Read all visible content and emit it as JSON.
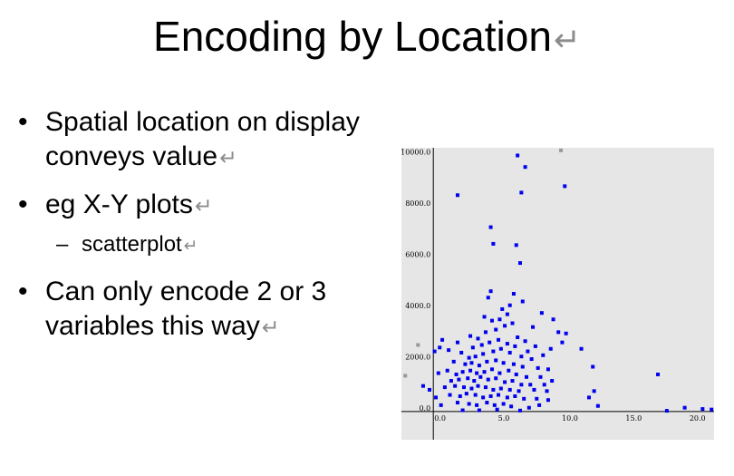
{
  "slide": {
    "title": "Encoding by Location",
    "bullets": [
      {
        "text": "Spatial location on display conveys value"
      },
      {
        "text": "eg X-Y plots",
        "sub": [
          "scatterplot"
        ]
      },
      {
        "text": "Can only encode 2 or 3 variables this way"
      }
    ],
    "return_glyph": "↵",
    "sub_bullet_marker": "–"
  },
  "chart_data": {
    "type": "scatter",
    "xlim": [
      -2.5,
      22
    ],
    "ylim": [
      -1100,
      10300
    ],
    "x_ticks": [
      "0.0",
      "5.0",
      "10.0",
      "15.0",
      "20.0"
    ],
    "y_ticks": [
      "0.0",
      "2000.0",
      "4000.0",
      "6000.0",
      "8000.0",
      "10000.0"
    ],
    "grid": false,
    "colors": {
      "primary": "#0000ee",
      "secondary": "#999999",
      "background": "#e6e6e6"
    },
    "series": [
      {
        "color": "#0000ee",
        "points": [
          [
            6.6,
            10000
          ],
          [
            7.2,
            9550
          ],
          [
            10.3,
            8800
          ],
          [
            6.9,
            8550
          ],
          [
            1.9,
            8450
          ],
          [
            4.5,
            7200
          ],
          [
            4.7,
            6550
          ],
          [
            6.5,
            6500
          ],
          [
            6.8,
            5800
          ],
          [
            4.5,
            4700
          ],
          [
            6.3,
            4600
          ],
          [
            4.3,
            4450
          ],
          [
            5.4,
            4000
          ],
          [
            6.0,
            4150
          ],
          [
            7.0,
            4300
          ],
          [
            5.8,
            3800
          ],
          [
            8.5,
            3850
          ],
          [
            9.4,
            3600
          ],
          [
            4.0,
            3700
          ],
          [
            4.6,
            3550
          ],
          [
            5.2,
            3600
          ],
          [
            6.2,
            3450
          ],
          [
            7.8,
            3300
          ],
          [
            9.8,
            3100
          ],
          [
            10.4,
            3050
          ],
          [
            10.1,
            2700
          ],
          [
            0.7,
            2800
          ],
          [
            1.9,
            2700
          ],
          [
            2.9,
            2950
          ],
          [
            3.5,
            2850
          ],
          [
            4.1,
            3100
          ],
          [
            4.9,
            3200
          ],
          [
            5.6,
            3350
          ],
          [
            6.6,
            2900
          ],
          [
            7.2,
            2750
          ],
          [
            8.0,
            2550
          ],
          [
            9.2,
            2450
          ],
          [
            11.6,
            2450
          ],
          [
            0.1,
            2350
          ],
          [
            0.5,
            2500
          ],
          [
            1.2,
            2400
          ],
          [
            2.2,
            2300
          ],
          [
            3.1,
            2500
          ],
          [
            3.8,
            2600
          ],
          [
            4.4,
            2700
          ],
          [
            5.1,
            2800
          ],
          [
            5.8,
            2650
          ],
          [
            6.4,
            2550
          ],
          [
            7.4,
            2350
          ],
          [
            8.6,
            2200
          ],
          [
            2.8,
            2100
          ],
          [
            3.3,
            2150
          ],
          [
            3.9,
            2250
          ],
          [
            4.7,
            2350
          ],
          [
            5.3,
            2450
          ],
          [
            6.0,
            2300
          ],
          [
            6.9,
            2150
          ],
          [
            7.7,
            2050
          ],
          [
            1.6,
            1950
          ],
          [
            2.5,
            1850
          ],
          [
            3.0,
            1900
          ],
          [
            3.6,
            1800
          ],
          [
            4.2,
            1950
          ],
          [
            4.9,
            2000
          ],
          [
            5.5,
            1900
          ],
          [
            6.3,
            1850
          ],
          [
            7.0,
            1750
          ],
          [
            8.2,
            1700
          ],
          [
            9.0,
            1650
          ],
          [
            12.5,
            1750
          ],
          [
            0.4,
            1500
          ],
          [
            1.1,
            1600
          ],
          [
            1.8,
            1450
          ],
          [
            2.3,
            1550
          ],
          [
            2.9,
            1600
          ],
          [
            3.4,
            1500
          ],
          [
            4.0,
            1550
          ],
          [
            4.6,
            1650
          ],
          [
            5.2,
            1500
          ],
          [
            5.9,
            1600
          ],
          [
            6.5,
            1450
          ],
          [
            7.3,
            1350
          ],
          [
            8.4,
            1350
          ],
          [
            17.6,
            1450
          ],
          [
            -0.8,
            1000
          ],
          [
            1.4,
            1200
          ],
          [
            2.0,
            1250
          ],
          [
            2.7,
            1300
          ],
          [
            3.2,
            1200
          ],
          [
            3.7,
            1350
          ],
          [
            4.3,
            1250
          ],
          [
            4.9,
            1300
          ],
          [
            5.6,
            1150
          ],
          [
            6.2,
            1200
          ],
          [
            6.9,
            1050
          ],
          [
            7.6,
            1050
          ],
          [
            8.7,
            1050
          ],
          [
            9.3,
            1200
          ],
          [
            -0.3,
            850
          ],
          [
            0.9,
            950
          ],
          [
            1.7,
            1000
          ],
          [
            2.4,
            950
          ],
          [
            3.0,
            900
          ],
          [
            3.5,
            1000
          ],
          [
            4.1,
            950
          ],
          [
            4.7,
            850
          ],
          [
            5.3,
            900
          ],
          [
            6.0,
            850
          ],
          [
            6.7,
            800
          ],
          [
            7.9,
            850
          ],
          [
            8.9,
            800
          ],
          [
            12.6,
            800
          ],
          [
            0.2,
            550
          ],
          [
            1.3,
            650
          ],
          [
            2.1,
            600
          ],
          [
            2.6,
            700
          ],
          [
            3.3,
            650
          ],
          [
            3.9,
            550
          ],
          [
            4.5,
            600
          ],
          [
            5.1,
            650
          ],
          [
            5.8,
            550
          ],
          [
            6.4,
            600
          ],
          [
            7.1,
            500
          ],
          [
            8.1,
            500
          ],
          [
            9.0,
            450
          ],
          [
            12.2,
            550
          ],
          [
            0.6,
            250
          ],
          [
            1.9,
            350
          ],
          [
            2.8,
            300
          ],
          [
            3.4,
            250
          ],
          [
            4.2,
            350
          ],
          [
            4.8,
            250
          ],
          [
            5.5,
            300
          ],
          [
            6.1,
            200
          ],
          [
            7.5,
            150
          ],
          [
            8.3,
            250
          ],
          [
            2.3,
            50
          ],
          [
            3.6,
            50
          ],
          [
            5.0,
            80
          ],
          [
            6.8,
            40
          ],
          [
            12.9,
            220
          ],
          [
            18.3,
            30
          ],
          [
            19.7,
            150
          ],
          [
            21.1,
            100
          ],
          [
            21.8,
            80
          ]
        ]
      },
      {
        "color": "#999999",
        "points": [
          [
            10.0,
            10200
          ],
          [
            -1.2,
            2600
          ],
          [
            -2.2,
            1400
          ]
        ]
      }
    ]
  }
}
